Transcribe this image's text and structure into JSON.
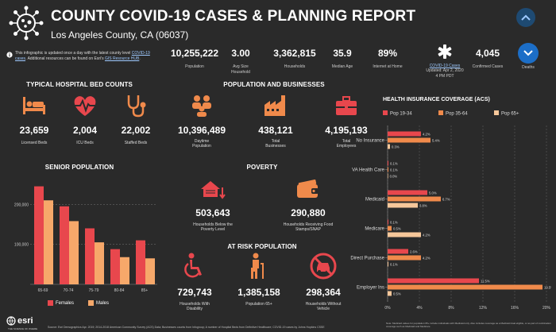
{
  "header": {
    "title": "COUNTY COVID-19 CASES & PLANNING REPORT",
    "subtitle": "Los Angeles County, CA (06037)",
    "info_pre": "This infographic is updated once a day with the latest county level",
    "info_link1": "COVID-19 cases",
    "info_mid": ". Additional resources can be found on Esri's",
    "info_link2": "GIS Resource HUB",
    "info_post": "."
  },
  "stats": [
    {
      "value": "10,255,222",
      "label": "Population"
    },
    {
      "value": "3.00",
      "label": "Avg Size Household"
    },
    {
      "value": "3,362,815",
      "label": "Households"
    },
    {
      "value": "35.9",
      "label": "Median Age"
    },
    {
      "value": "89%",
      "label": "Internet at Home"
    }
  ],
  "covid": {
    "link_label": "COVID-19 Cases",
    "updated": "Updated: Apr 2, 2020",
    "time": "4 PM PDT",
    "confirmed_value": "4,045",
    "confirmed_label": "Confirmed Cases",
    "deaths_label": "Deaths"
  },
  "hospital": {
    "title": "TYPICAL HOSPITAL BED COUNTS",
    "items": [
      {
        "value": "23,659",
        "label": "Licensed Beds",
        "icon": "bed-icon"
      },
      {
        "value": "2,004",
        "label": "ICU Beds",
        "icon": "heart-monitor-icon"
      },
      {
        "value": "22,002",
        "label": "Staffed Beds",
        "icon": "stethoscope-icon"
      }
    ]
  },
  "popbiz": {
    "title": "POPULATION AND BUSINESSES",
    "items": [
      {
        "value": "10,396,489",
        "label": "Daytime Population",
        "icon": "people-icon"
      },
      {
        "value": "438,121",
        "label": "Total Businesses",
        "icon": "factory-icon"
      },
      {
        "value": "4,195,193",
        "label": "Total Employees",
        "icon": "briefcase-icon"
      }
    ]
  },
  "poverty": {
    "title": "POVERTY",
    "items": [
      {
        "value": "503,643",
        "label": "Households Below the Poverty Level",
        "icon": "house-down-icon"
      },
      {
        "value": "290,880",
        "label": "Households Receiving Food Stamps/SNAP",
        "icon": "wallet-icon"
      }
    ]
  },
  "atrisk": {
    "title": "AT RISK POPULATION",
    "items": [
      {
        "value": "729,743",
        "label": "Households With Disability",
        "icon": "wheelchair-icon"
      },
      {
        "value": "1,385,158",
        "label": "Population 65+",
        "icon": "elderly-icon"
      },
      {
        "value": "298,364",
        "label": "Households Without Vehicle",
        "icon": "no-car-icon"
      }
    ]
  },
  "senior": {
    "title": "SENIOR POPULATION",
    "legend": [
      "Females",
      "Males"
    ]
  },
  "insurance": {
    "title": "HEALTH INSURANCE COVERAGE (ACS)",
    "note": "Note: Medicaid values for population 65+ include individuals with Medicaid only. Also includes coverage as a Medicaid dual eligible, or as part of combination coverage such as Medicaid and Medicare."
  },
  "footer": {
    "logo": "esri",
    "logo_sub": "THE SCIENCE OF WHERE",
    "source": "Source: Esri Demographics Apr. 2019; 2014-2018 American Community Survey (ACS) Data; Businesses counts from Infogroup; A number of Hospital Beds from Definitive Healthcare; COVID-19 cases by Johns Hopkins CSSE"
  },
  "colors": {
    "red": "#e8474d",
    "orange": "#f08a4b",
    "peach": "#f6c79a",
    "bg": "#2a2a2a",
    "accent_blue": "#1c6ec7"
  },
  "chart_data": [
    {
      "type": "bar",
      "title": "SENIOR POPULATION",
      "categories": [
        "65-69",
        "70-74",
        "75-79",
        "80-84",
        "85+"
      ],
      "series": [
        {
          "name": "Females",
          "values": [
            245000,
            195000,
            140000,
            88000,
            110000
          ]
        },
        {
          "name": "Males",
          "values": [
            210000,
            158000,
            105000,
            68000,
            65000
          ]
        }
      ],
      "yticks": [
        "200,000",
        "100,000"
      ],
      "ylim": [
        0,
        270000
      ],
      "grid": true,
      "legend": "bottom"
    },
    {
      "type": "bar",
      "orientation": "horizontal",
      "title": "HEALTH INSURANCE COVERAGE (ACS)",
      "categories": [
        "No Insurance",
        "VA Health Care",
        "Medicaid",
        "Medicare",
        "Direct Purchase",
        "Employer Ins"
      ],
      "series": [
        {
          "name": "Pop 19-34",
          "values": [
            4.2,
            0.1,
            5.0,
            0.1,
            2.6,
            11.5
          ]
        },
        {
          "name": "Pop 35-64",
          "values": [
            5.4,
            0.1,
            6.7,
            0.5,
            4.2,
            19.5
          ]
        },
        {
          "name": "Pop 65+",
          "values": [
            0.3,
            0.0,
            3.8,
            4.2,
            0.1,
            0.5
          ]
        }
      ],
      "value_labels": [
        [
          "4.2%",
          "5.4%",
          "0.3%"
        ],
        [
          "0.1%",
          "0.1%",
          "0.0%"
        ],
        [
          "5.0%",
          "6.7%",
          "3.8%"
        ],
        [
          "0.1%",
          "0.5%",
          "4.2%"
        ],
        [
          "2.6%",
          "4.2%",
          "0.1%"
        ],
        [
          "11.5%",
          "19.5%",
          "0.5%"
        ]
      ],
      "xticks": [
        "0%",
        "4%",
        "8%",
        "12%",
        "16%",
        "20%"
      ],
      "xlim": [
        0,
        20
      ],
      "legend": "top",
      "grid": true
    }
  ]
}
